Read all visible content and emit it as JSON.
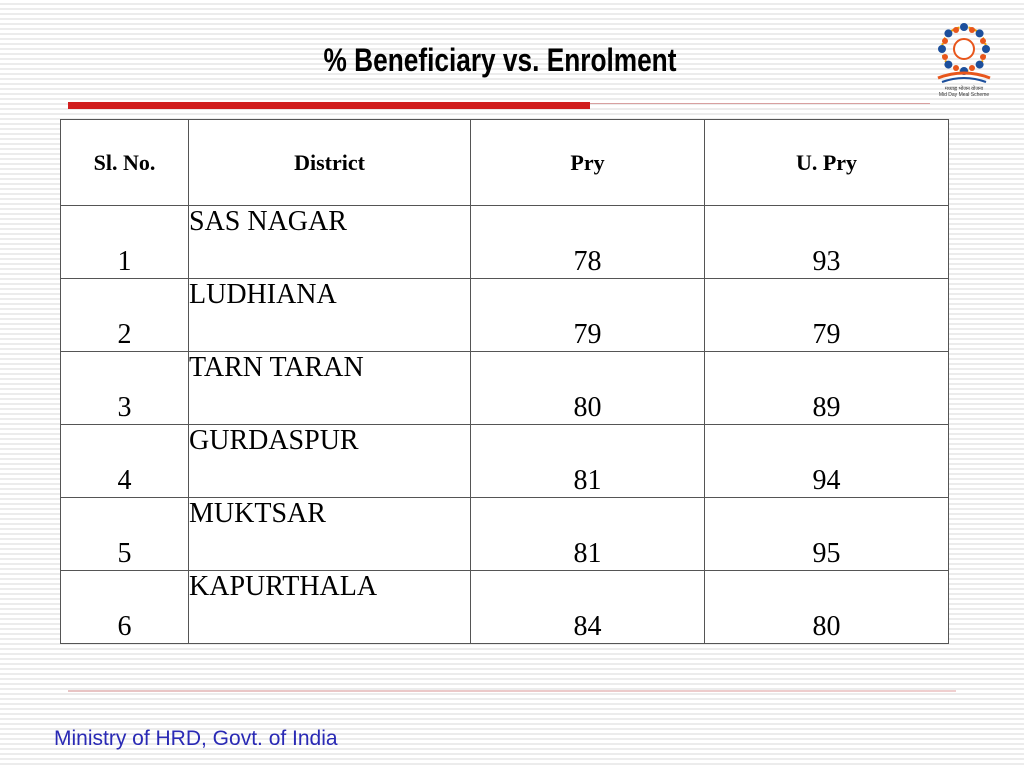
{
  "slide": {
    "title": "% Beneficiary vs. Enrolment",
    "footer": "Ministry of HRD, Govt. of India"
  },
  "logo": {
    "icon": "mid-day-meal-logo",
    "caption_hindi": "मध्याह्न भोजन योजना",
    "caption": "Mid Day Meal Scheme"
  },
  "table": {
    "headers": [
      "Sl.  No.",
      "District",
      "Pry",
      "U. Pry"
    ],
    "rows": [
      {
        "sl": "1",
        "district": "SAS NAGAR",
        "pry": "78",
        "upry": "93"
      },
      {
        "sl": "2",
        "district": "LUDHIANA",
        "pry": "79",
        "upry": "79"
      },
      {
        "sl": "3",
        "district": "TARN TARAN",
        "pry": "80",
        "upry": "89"
      },
      {
        "sl": "4",
        "district": "GURDASPUR",
        "pry": "81",
        "upry": "94"
      },
      {
        "sl": "5",
        "district": "MUKTSAR",
        "pry": "81",
        "upry": "95"
      },
      {
        "sl": "6",
        "district": "KAPURTHALA",
        "pry": "84",
        "upry": "80"
      }
    ]
  },
  "colors": {
    "accent_red": "#d11f1f",
    "footer_blue": "#2a2ab5"
  }
}
